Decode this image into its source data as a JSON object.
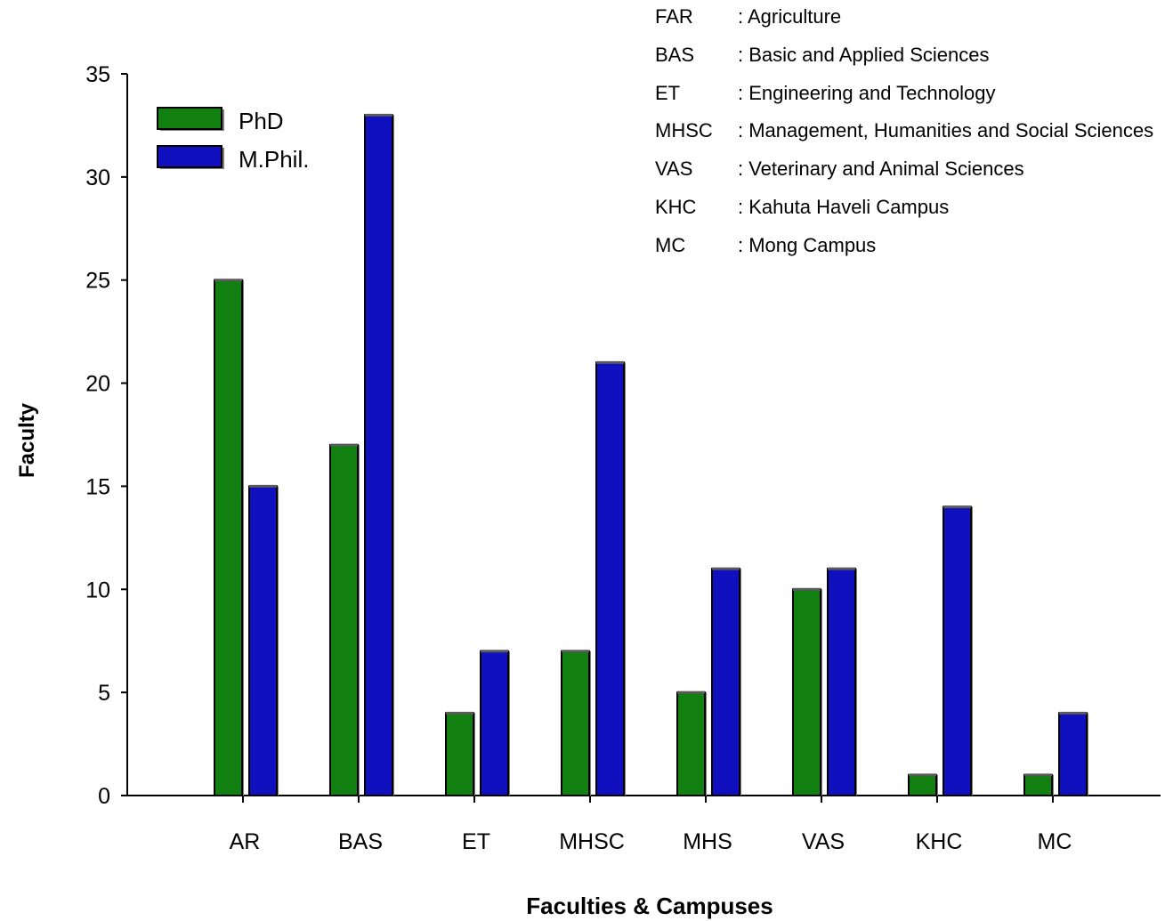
{
  "chart_data": {
    "type": "bar",
    "title": "",
    "xlabel": "Faculties & Campuses",
    "ylabel": "Faculty",
    "ylim": [
      0,
      35
    ],
    "yticks": [
      0,
      5,
      10,
      15,
      20,
      25,
      30,
      35
    ],
    "categories": [
      "AR",
      "BAS",
      "ET",
      "MHSC",
      "MHS",
      "VAS",
      "KHC",
      "MC"
    ],
    "series": [
      {
        "name": "PhD",
        "color": "#118011",
        "values": [
          25,
          17,
          4,
          7,
          5,
          10,
          1,
          1
        ]
      },
      {
        "name": "M.Phil.",
        "color": "#1010bf",
        "values": [
          15,
          33,
          7,
          21,
          11,
          11,
          14,
          4
        ]
      }
    ],
    "legend_position": "top-left",
    "grid": false
  },
  "abbreviations": [
    {
      "code": "FAR",
      "desc": ": Agriculture"
    },
    {
      "code": "BAS",
      "desc": ": Basic and Applied Sciences"
    },
    {
      "code": "ET",
      "desc": ": Engineering and Technology"
    },
    {
      "code": "MHSC",
      "desc": ": Management, Humanities and Social Sciences"
    },
    {
      "code": "VAS",
      "desc": ": Veterinary and Animal Sciences"
    },
    {
      "code": "KHC",
      "desc": ": Kahuta Haveli Campus"
    },
    {
      "code": "MC",
      "desc": ": Mong Campus"
    }
  ]
}
